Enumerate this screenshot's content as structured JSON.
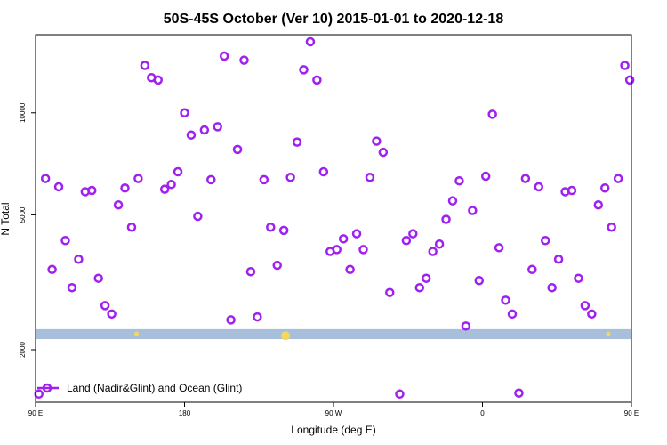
{
  "chart_data": {
    "type": "scatter",
    "title": "50S-45S October (Ver 10)   2015-01-01 to 2020-12-18",
    "xlabel": "Longitude (deg E)",
    "ylabel": "N Total",
    "x_axis": {
      "lim": [
        -90,
        270
      ],
      "ticks": [
        {
          "value": -90,
          "label": "90 E"
        },
        {
          "value": 0,
          "label": "180"
        },
        {
          "value": 90,
          "label": "90 W"
        },
        {
          "value": 180,
          "label": "0"
        },
        {
          "value": 270,
          "label": "90 E"
        }
      ]
    },
    "y_axis": {
      "scale": "log",
      "lim": [
        1400,
        17000
      ],
      "ticks": [
        {
          "value": 2000,
          "label": "2000"
        },
        {
          "value": 5000,
          "label": "5000"
        },
        {
          "value": 10000,
          "label": "10000"
        }
      ]
    },
    "grid": false,
    "legend_position": "bottom-left",
    "colors": {
      "series": "#a020f0",
      "band": "#a8bfdc",
      "highlight": "#f5d75a"
    },
    "band": {
      "y_range": [
        2150,
        2300
      ]
    },
    "highlights": [
      {
        "x": -29,
        "y": 2230
      },
      {
        "x": 61,
        "y": 2200
      },
      {
        "x": 256,
        "y": 2230
      }
    ],
    "series": [
      {
        "name": "Land (Nadir&Glint) and Ocean (Glint)",
        "marker": "circle-open",
        "points": [
          {
            "x": -88,
            "y": 1480
          },
          {
            "x": -84,
            "y": 6400
          },
          {
            "x": -80,
            "y": 3450
          },
          {
            "x": -76,
            "y": 6050
          },
          {
            "x": -72,
            "y": 4200
          },
          {
            "x": -68,
            "y": 3050
          },
          {
            "x": -64,
            "y": 3700
          },
          {
            "x": -60,
            "y": 5850
          },
          {
            "x": -56,
            "y": 5900
          },
          {
            "x": -52,
            "y": 3250
          },
          {
            "x": -48,
            "y": 2700
          },
          {
            "x": -44,
            "y": 2550
          },
          {
            "x": -40,
            "y": 5350
          },
          {
            "x": -36,
            "y": 6000
          },
          {
            "x": -32,
            "y": 4600
          },
          {
            "x": -28,
            "y": 6400
          },
          {
            "x": -24,
            "y": 13800
          },
          {
            "x": -20,
            "y": 12700
          },
          {
            "x": -16,
            "y": 12500
          },
          {
            "x": -12,
            "y": 5950
          },
          {
            "x": -8,
            "y": 6150
          },
          {
            "x": -4,
            "y": 6700
          },
          {
            "x": 0,
            "y": 10000
          },
          {
            "x": 4,
            "y": 8600
          },
          {
            "x": 8,
            "y": 4950
          },
          {
            "x": 12,
            "y": 8900
          },
          {
            "x": 16,
            "y": 6350
          },
          {
            "x": 20,
            "y": 9100
          },
          {
            "x": 24,
            "y": 14700
          },
          {
            "x": 28,
            "y": 2450
          },
          {
            "x": 32,
            "y": 7800
          },
          {
            "x": 36,
            "y": 14300
          },
          {
            "x": 40,
            "y": 3400
          },
          {
            "x": 44,
            "y": 2500
          },
          {
            "x": 48,
            "y": 6350
          },
          {
            "x": 52,
            "y": 4600
          },
          {
            "x": 56,
            "y": 3550
          },
          {
            "x": 60,
            "y": 4500
          },
          {
            "x": 64,
            "y": 6450
          },
          {
            "x": 68,
            "y": 8200
          },
          {
            "x": 72,
            "y": 13400
          },
          {
            "x": 76,
            "y": 16200
          },
          {
            "x": 80,
            "y": 12500
          },
          {
            "x": 84,
            "y": 6700
          },
          {
            "x": 88,
            "y": 3900
          },
          {
            "x": 92,
            "y": 3950
          },
          {
            "x": 96,
            "y": 4250
          },
          {
            "x": 100,
            "y": 3450
          },
          {
            "x": 104,
            "y": 4400
          },
          {
            "x": 108,
            "y": 3950
          },
          {
            "x": 112,
            "y": 6450
          },
          {
            "x": 116,
            "y": 8250
          },
          {
            "x": 120,
            "y": 7650
          },
          {
            "x": 124,
            "y": 2950
          },
          {
            "x": 130,
            "y": 1480
          },
          {
            "x": 134,
            "y": 4200
          },
          {
            "x": 138,
            "y": 4400
          },
          {
            "x": 142,
            "y": 3050
          },
          {
            "x": 146,
            "y": 3250
          },
          {
            "x": 150,
            "y": 3900
          },
          {
            "x": 154,
            "y": 4100
          },
          {
            "x": 158,
            "y": 4850
          },
          {
            "x": 162,
            "y": 5500
          },
          {
            "x": 166,
            "y": 6300
          },
          {
            "x": 170,
            "y": 2350
          },
          {
            "x": 174,
            "y": 5150
          },
          {
            "x": 178,
            "y": 3200
          },
          {
            "x": 182,
            "y": 6500
          },
          {
            "x": 186,
            "y": 9900
          },
          {
            "x": 190,
            "y": 4000
          },
          {
            "x": 194,
            "y": 2800
          },
          {
            "x": 198,
            "y": 2550
          },
          {
            "x": 202,
            "y": 1490
          },
          {
            "x": 206,
            "y": 6400
          },
          {
            "x": 210,
            "y": 3450
          },
          {
            "x": 214,
            "y": 6050
          },
          {
            "x": 218,
            "y": 4200
          },
          {
            "x": 222,
            "y": 3050
          },
          {
            "x": 226,
            "y": 3700
          },
          {
            "x": 230,
            "y": 5850
          },
          {
            "x": 234,
            "y": 5900
          },
          {
            "x": 238,
            "y": 3250
          },
          {
            "x": 242,
            "y": 2700
          },
          {
            "x": 246,
            "y": 2550
          },
          {
            "x": 250,
            "y": 5350
          },
          {
            "x": 254,
            "y": 6000
          },
          {
            "x": 258,
            "y": 4600
          },
          {
            "x": 262,
            "y": 6400
          },
          {
            "x": 266,
            "y": 13800
          },
          {
            "x": 269,
            "y": 12500
          }
        ]
      }
    ]
  }
}
